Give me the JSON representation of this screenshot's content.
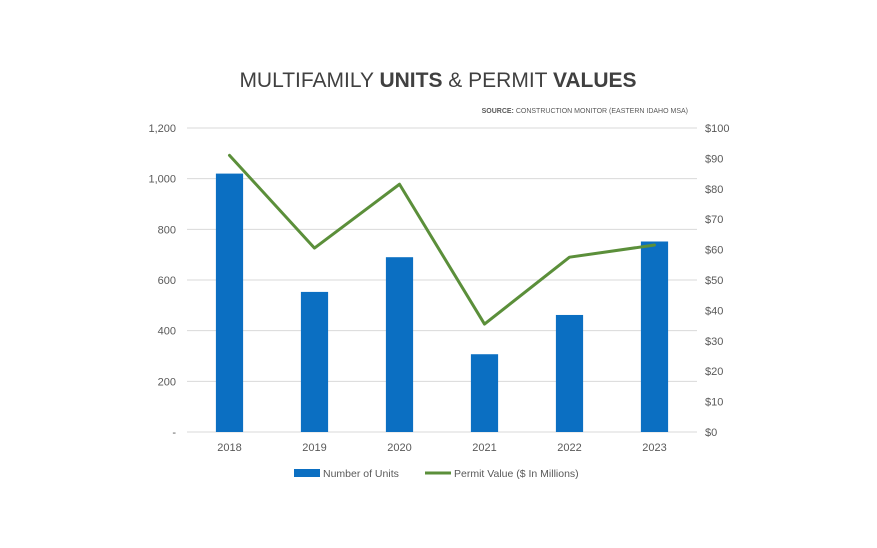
{
  "chart_data": {
    "type": "bar",
    "title_parts": [
      {
        "text": "MULTIFAMILY ",
        "bold": false
      },
      {
        "text": "UNITS",
        "bold": true
      },
      {
        "text": " & PERMIT ",
        "bold": false
      },
      {
        "text": "VALUES",
        "bold": true
      }
    ],
    "source": {
      "label": "SOURCE:",
      "text": " CONSTRUCTION MONITOR (EASTERN IDAHO MSA)"
    },
    "categories": [
      "2018",
      "2019",
      "2020",
      "2021",
      "2022",
      "2023"
    ],
    "series": [
      {
        "name": "Number of Units",
        "kind": "bar",
        "axis": "left",
        "color": "#0b6fc2",
        "values": [
          1020,
          553,
          690,
          307,
          462,
          752
        ]
      },
      {
        "name": "Permit Value ($ In Millions)",
        "kind": "line",
        "axis": "right",
        "color": "#5b8f3a",
        "values": [
          91,
          60.5,
          81.5,
          35.5,
          57.5,
          61.5
        ]
      }
    ],
    "y_left": {
      "min": 0,
      "max": 1200,
      "ticks": [
        0,
        200,
        400,
        600,
        800,
        1000,
        1200
      ],
      "tick_labels": [
        "-",
        "200",
        "400",
        "600",
        "800",
        "1,000",
        "1,200"
      ]
    },
    "y_right": {
      "min": 0,
      "max": 100,
      "ticks": [
        0,
        10,
        20,
        30,
        40,
        50,
        60,
        70,
        80,
        90,
        100
      ],
      "tick_labels": [
        "$0",
        "$10",
        "$20",
        "$30",
        "$40",
        "$50",
        "$60",
        "$70",
        "$80",
        "$90",
        "$100"
      ]
    },
    "grid": true,
    "legend": "bottom",
    "colors": {
      "grid": "#d9d9d9",
      "text": "#595959",
      "title": "#404040"
    }
  }
}
